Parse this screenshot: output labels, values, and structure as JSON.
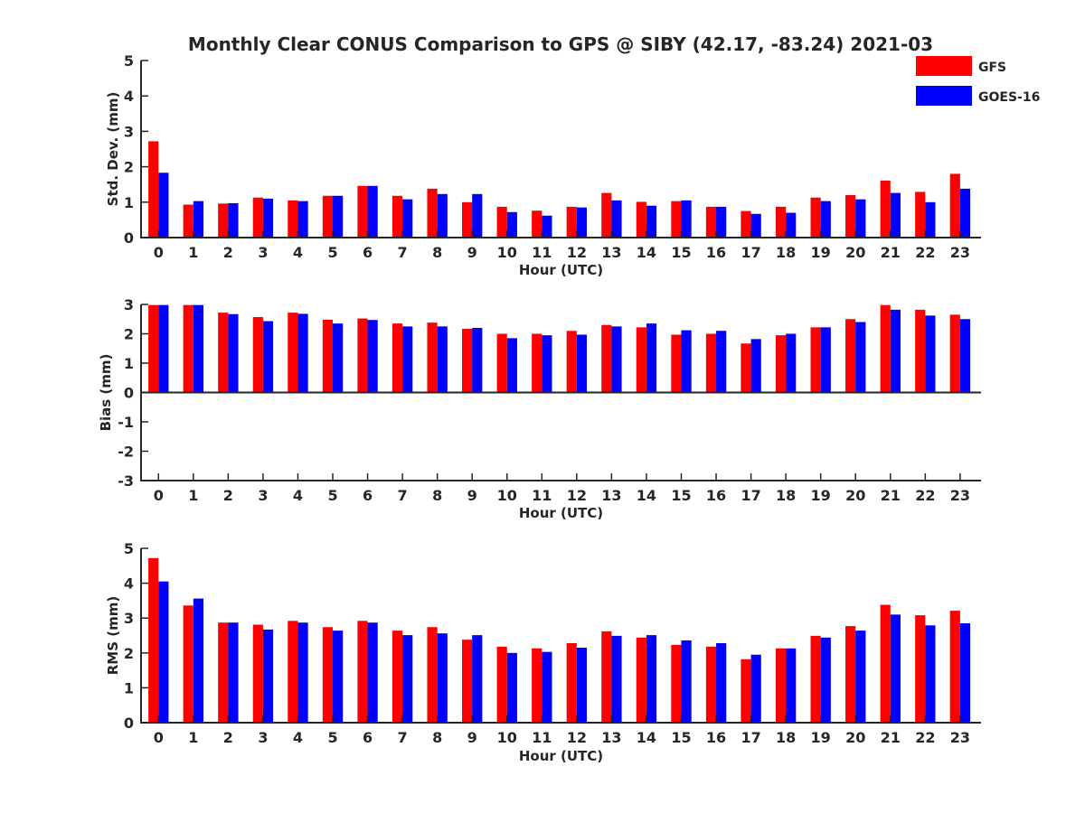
{
  "figure": {
    "title": "Monthly Clear CONUS Comparison to GPS @ SIBY (42.17, -83.24) 2021-03"
  },
  "legend": {
    "position": "top-right",
    "items": [
      {
        "label": "GFS",
        "color": "#ff0000"
      },
      {
        "label": "GOES-16",
        "color": "#0000ff"
      }
    ]
  },
  "chart_data": [
    {
      "type": "bar",
      "title": "Monthly Clear CONUS Comparison to GPS @ SIBY (42.17, -83.24) 2021-03",
      "xlabel": "Hour (UTC)",
      "ylabel": "Std. Dev. (mm)",
      "ylim": [
        0,
        5
      ],
      "yticks": [
        0,
        1,
        2,
        3,
        4,
        5
      ],
      "grid": false,
      "categories": [
        "0",
        "1",
        "2",
        "3",
        "4",
        "5",
        "6",
        "7",
        "8",
        "9",
        "10",
        "11",
        "12",
        "13",
        "14",
        "15",
        "16",
        "17",
        "18",
        "19",
        "20",
        "21",
        "22",
        "23"
      ],
      "series": [
        {
          "name": "GFS",
          "color": "#ff0000",
          "values": [
            2.72,
            0.93,
            0.96,
            1.13,
            1.05,
            1.18,
            1.46,
            1.18,
            1.38,
            1.0,
            0.87,
            0.76,
            0.87,
            1.26,
            1.01,
            1.03,
            0.87,
            0.75,
            0.87,
            1.13,
            1.2,
            1.61,
            1.29,
            1.8
          ]
        },
        {
          "name": "GOES-16",
          "color": "#0000ff",
          "values": [
            1.83,
            1.03,
            0.97,
            1.1,
            1.03,
            1.18,
            1.46,
            1.08,
            1.23,
            1.23,
            0.72,
            0.62,
            0.85,
            1.05,
            0.9,
            1.05,
            0.87,
            0.67,
            0.7,
            1.03,
            1.08,
            1.26,
            1.0,
            1.38
          ]
        }
      ]
    },
    {
      "type": "bar",
      "xlabel": "Hour (UTC)",
      "ylabel": "Bias (mm)",
      "ylim": [
        -3,
        3
      ],
      "yticks": [
        -3,
        -2,
        -1,
        0,
        1,
        2,
        3
      ],
      "grid": false,
      "categories": [
        "0",
        "1",
        "2",
        "3",
        "4",
        "5",
        "6",
        "7",
        "8",
        "9",
        "10",
        "11",
        "12",
        "13",
        "14",
        "15",
        "16",
        "17",
        "18",
        "19",
        "20",
        "21",
        "22",
        "23"
      ],
      "series": [
        {
          "name": "GFS",
          "color": "#ff0000",
          "values": [
            2.98,
            2.98,
            2.72,
            2.57,
            2.72,
            2.48,
            2.52,
            2.35,
            2.38,
            2.17,
            2.0,
            2.0,
            2.1,
            2.3,
            2.22,
            1.97,
            2.0,
            1.67,
            1.95,
            2.22,
            2.5,
            2.98,
            2.82,
            2.65
          ]
        },
        {
          "name": "GOES-16",
          "color": "#0000ff",
          "values": [
            2.98,
            2.98,
            2.67,
            2.43,
            2.68,
            2.35,
            2.47,
            2.25,
            2.25,
            2.2,
            1.85,
            1.95,
            1.97,
            2.25,
            2.35,
            2.12,
            2.1,
            1.82,
            2.0,
            2.22,
            2.4,
            2.82,
            2.62,
            2.5
          ]
        }
      ]
    },
    {
      "type": "bar",
      "xlabel": "Hour (UTC)",
      "ylabel": "RMS (mm)",
      "ylim": [
        0,
        5
      ],
      "yticks": [
        0,
        1,
        2,
        3,
        4,
        5
      ],
      "grid": false,
      "categories": [
        "0",
        "1",
        "2",
        "3",
        "4",
        "5",
        "6",
        "7",
        "8",
        "9",
        "10",
        "11",
        "12",
        "13",
        "14",
        "15",
        "16",
        "17",
        "18",
        "19",
        "20",
        "21",
        "22",
        "23"
      ],
      "series": [
        {
          "name": "GFS",
          "color": "#ff0000",
          "values": [
            4.72,
            3.36,
            2.87,
            2.81,
            2.92,
            2.74,
            2.92,
            2.64,
            2.74,
            2.38,
            2.18,
            2.13,
            2.28,
            2.62,
            2.44,
            2.23,
            2.18,
            1.82,
            2.13,
            2.49,
            2.77,
            3.38,
            3.08,
            3.21
          ]
        },
        {
          "name": "GOES-16",
          "color": "#0000ff",
          "values": [
            4.05,
            3.56,
            2.87,
            2.67,
            2.87,
            2.64,
            2.87,
            2.51,
            2.56,
            2.51,
            2.0,
            2.03,
            2.15,
            2.49,
            2.51,
            2.36,
            2.28,
            1.95,
            2.13,
            2.44,
            2.64,
            3.1,
            2.79,
            2.85
          ]
        }
      ]
    }
  ]
}
